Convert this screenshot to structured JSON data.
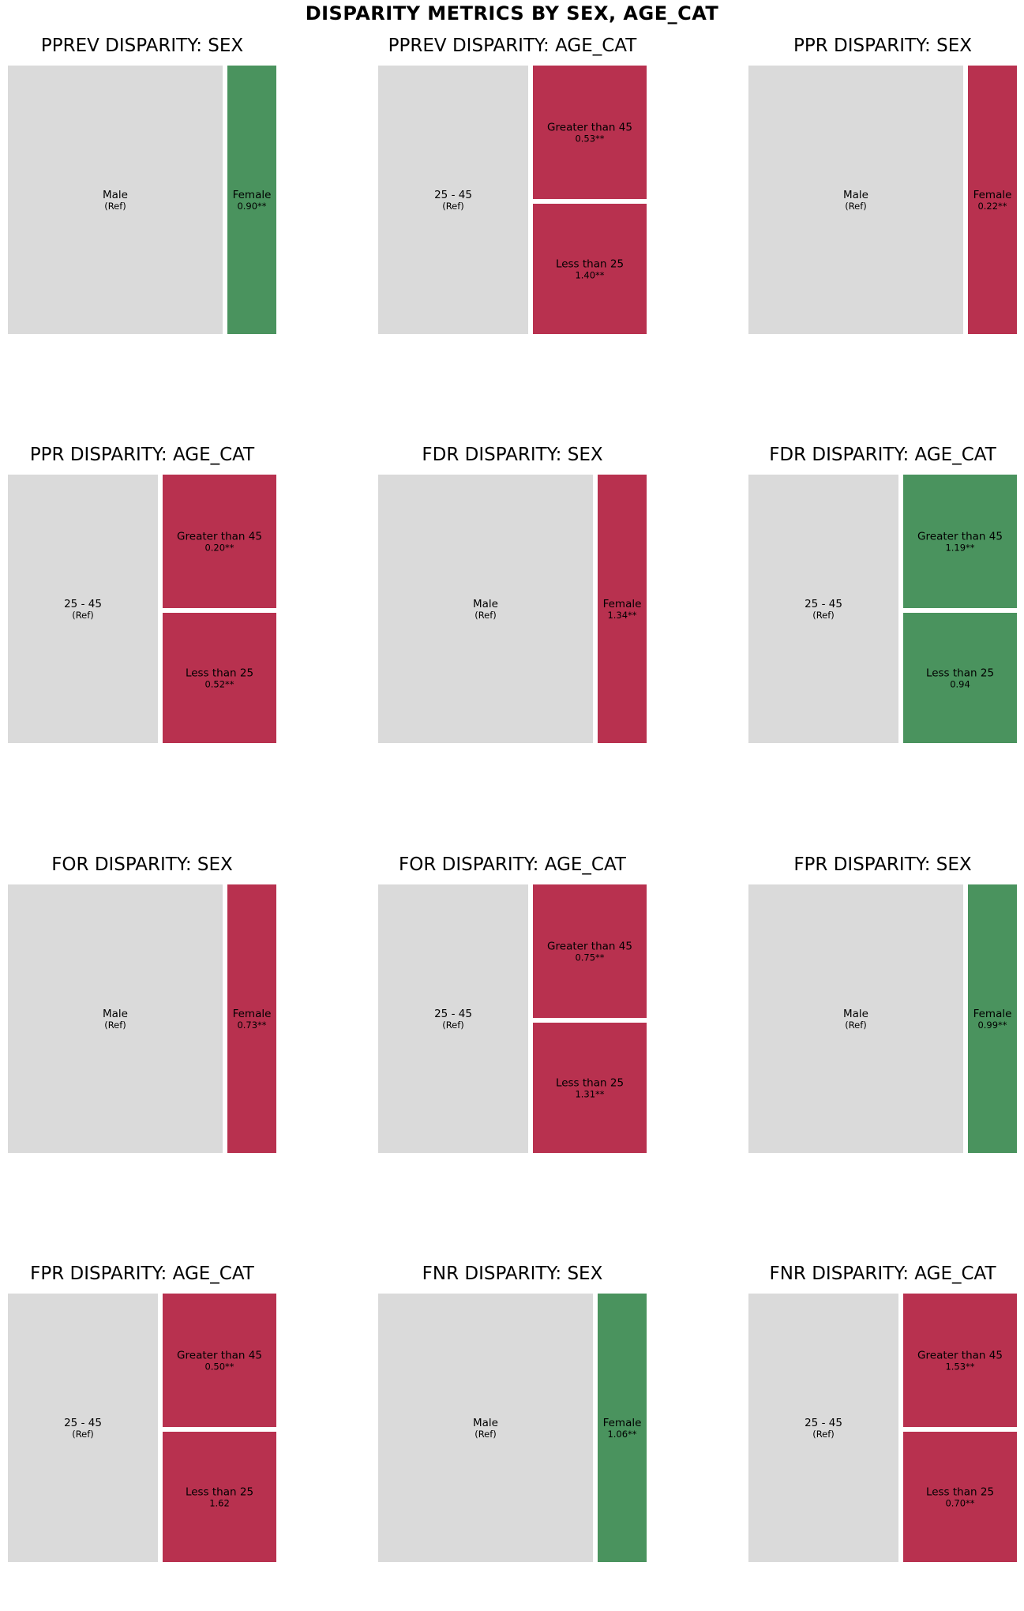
{
  "title": "DISPARITY METRICS BY SEX, AGE_CAT",
  "colors": {
    "reference": "#dadada",
    "favorable": "#4a935e",
    "unfavorable": "#b8314f"
  },
  "chart_data": [
    {
      "type": "treemap",
      "title": "PPREV DISPARITY: SEX",
      "attribute": "SEX",
      "tiles": [
        {
          "label": "Male",
          "value_text": "(Ref)",
          "role": "reference"
        },
        {
          "label": "Female",
          "value_text": "0.90**",
          "role": "favorable",
          "value": 0.9,
          "significant": true
        }
      ]
    },
    {
      "type": "treemap",
      "title": "PPREV DISPARITY: AGE_CAT",
      "attribute": "AGE_CAT",
      "tiles": [
        {
          "label": "25 - 45",
          "value_text": "(Ref)",
          "role": "reference"
        },
        {
          "label": "Greater than 45",
          "value_text": "0.53**",
          "role": "unfavorable",
          "value": 0.53,
          "significant": true
        },
        {
          "label": "Less than 25",
          "value_text": "1.40**",
          "role": "unfavorable",
          "value": 1.4,
          "significant": true
        }
      ]
    },
    {
      "type": "treemap",
      "title": "PPR DISPARITY: SEX",
      "attribute": "SEX",
      "tiles": [
        {
          "label": "Male",
          "value_text": "(Ref)",
          "role": "reference"
        },
        {
          "label": "Female",
          "value_text": "0.22**",
          "role": "unfavorable",
          "value": 0.22,
          "significant": true
        }
      ]
    },
    {
      "type": "treemap",
      "title": "PPR DISPARITY: AGE_CAT",
      "attribute": "AGE_CAT",
      "tiles": [
        {
          "label": "25 - 45",
          "value_text": "(Ref)",
          "role": "reference"
        },
        {
          "label": "Greater than 45",
          "value_text": "0.20**",
          "role": "unfavorable",
          "value": 0.2,
          "significant": true
        },
        {
          "label": "Less than 25",
          "value_text": "0.52**",
          "role": "unfavorable",
          "value": 0.52,
          "significant": true
        }
      ]
    },
    {
      "type": "treemap",
      "title": "FDR DISPARITY: SEX",
      "attribute": "SEX",
      "tiles": [
        {
          "label": "Male",
          "value_text": "(Ref)",
          "role": "reference"
        },
        {
          "label": "Female",
          "value_text": "1.34**",
          "role": "unfavorable",
          "value": 1.34,
          "significant": true
        }
      ]
    },
    {
      "type": "treemap",
      "title": "FDR DISPARITY: AGE_CAT",
      "attribute": "AGE_CAT",
      "tiles": [
        {
          "label": "25 - 45",
          "value_text": "(Ref)",
          "role": "reference"
        },
        {
          "label": "Greater than 45",
          "value_text": "1.19**",
          "role": "favorable",
          "value": 1.19,
          "significant": true
        },
        {
          "label": "Less than 25",
          "value_text": "0.94",
          "role": "favorable",
          "value": 0.94,
          "significant": false
        }
      ]
    },
    {
      "type": "treemap",
      "title": "FOR DISPARITY: SEX",
      "attribute": "SEX",
      "tiles": [
        {
          "label": "Male",
          "value_text": "(Ref)",
          "role": "reference"
        },
        {
          "label": "Female",
          "value_text": "0.73**",
          "role": "unfavorable",
          "value": 0.73,
          "significant": true
        }
      ]
    },
    {
      "type": "treemap",
      "title": "FOR DISPARITY: AGE_CAT",
      "attribute": "AGE_CAT",
      "tiles": [
        {
          "label": "25 - 45",
          "value_text": "(Ref)",
          "role": "reference"
        },
        {
          "label": "Greater than 45",
          "value_text": "0.75**",
          "role": "unfavorable",
          "value": 0.75,
          "significant": true
        },
        {
          "label": "Less than 25",
          "value_text": "1.31**",
          "role": "unfavorable",
          "value": 1.31,
          "significant": true
        }
      ]
    },
    {
      "type": "treemap",
      "title": "FPR DISPARITY: SEX",
      "attribute": "SEX",
      "tiles": [
        {
          "label": "Male",
          "value_text": "(Ref)",
          "role": "reference"
        },
        {
          "label": "Female",
          "value_text": "0.99**",
          "role": "favorable",
          "value": 0.99,
          "significant": true
        }
      ]
    },
    {
      "type": "treemap",
      "title": "FPR DISPARITY: AGE_CAT",
      "attribute": "AGE_CAT",
      "tiles": [
        {
          "label": "25 - 45",
          "value_text": "(Ref)",
          "role": "reference"
        },
        {
          "label": "Greater than 45",
          "value_text": "0.50**",
          "role": "unfavorable",
          "value": 0.5,
          "significant": true
        },
        {
          "label": "Less than 25",
          "value_text": "1.62",
          "role": "unfavorable",
          "value": 1.62,
          "significant": false
        }
      ]
    },
    {
      "type": "treemap",
      "title": "FNR DISPARITY: SEX",
      "attribute": "SEX",
      "tiles": [
        {
          "label": "Male",
          "value_text": "(Ref)",
          "role": "reference"
        },
        {
          "label": "Female",
          "value_text": "1.06**",
          "role": "favorable",
          "value": 1.06,
          "significant": true
        }
      ]
    },
    {
      "type": "treemap",
      "title": "FNR DISPARITY: AGE_CAT",
      "attribute": "AGE_CAT",
      "tiles": [
        {
          "label": "25 - 45",
          "value_text": "(Ref)",
          "role": "reference"
        },
        {
          "label": "Greater than 45",
          "value_text": "1.53**",
          "role": "unfavorable",
          "value": 1.53,
          "significant": true
        },
        {
          "label": "Less than 25",
          "value_text": "0.70**",
          "role": "unfavorable",
          "value": 0.7,
          "significant": true
        }
      ]
    }
  ]
}
